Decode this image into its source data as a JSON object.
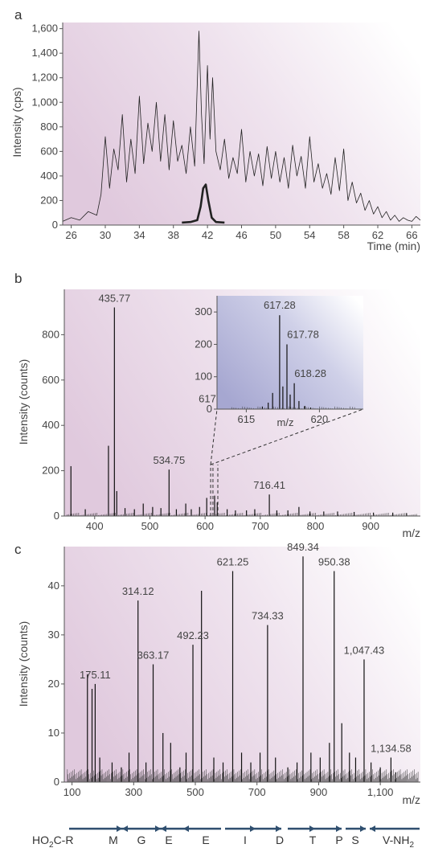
{
  "chart_data": [
    {
      "panel": "a",
      "type": "line",
      "xlabel": "Time (min)",
      "ylabel": "Intensity (cps)",
      "xlim": [
        25,
        67
      ],
      "ylim": [
        0,
        1650
      ],
      "x_ticks": [
        "26",
        "30",
        "34",
        "38",
        "42",
        "46",
        "50",
        "54",
        "58",
        "62",
        "66"
      ],
      "y_ticks": [
        "0",
        "200",
        "400",
        "600",
        "800",
        "1,000",
        "1,200",
        "1,400",
        "1,600"
      ],
      "series": [
        {
          "style": "thin",
          "x": [
            25,
            26,
            27,
            28,
            29,
            29.5,
            30,
            30.5,
            31,
            31.5,
            32,
            32.5,
            33,
            33.5,
            34,
            34.5,
            35,
            35.5,
            36,
            36.5,
            37,
            37.5,
            38,
            38.5,
            39,
            39.5,
            40,
            40.5,
            41,
            41.3,
            41.6,
            42,
            42.3,
            42.6,
            43,
            43.5,
            44,
            44.5,
            45,
            45.5,
            46,
            46.5,
            47,
            47.5,
            48,
            48.5,
            49,
            49.5,
            50,
            50.5,
            51,
            51.5,
            52,
            52.5,
            53,
            53.5,
            54,
            54.5,
            55,
            55.5,
            56,
            56.5,
            57,
            57.5,
            58,
            58.5,
            59,
            59.5,
            60,
            60.5,
            61,
            61.5,
            62,
            62.5,
            63,
            63.5,
            64,
            64.5,
            65,
            65.5,
            66,
            66.5,
            67
          ],
          "y": [
            30,
            60,
            40,
            110,
            80,
            250,
            720,
            300,
            620,
            450,
            900,
            350,
            700,
            420,
            1050,
            500,
            830,
            600,
            1000,
            520,
            900,
            450,
            850,
            520,
            650,
            420,
            800,
            480,
            1580,
            900,
            500,
            1300,
            700,
            1200,
            600,
            450,
            700,
            380,
            550,
            420,
            780,
            350,
            600,
            400,
            580,
            320,
            640,
            380,
            600,
            350,
            550,
            300,
            650,
            400,
            560,
            300,
            720,
            350,
            500,
            300,
            420,
            250,
            550,
            280,
            620,
            200,
            350,
            180,
            260,
            120,
            200,
            90,
            150,
            60,
            110,
            40,
            80,
            30,
            60,
            40,
            30,
            70,
            40
          ]
        },
        {
          "style": "thick",
          "x": [
            39,
            40,
            40.8,
            41.2,
            41.5,
            41.8,
            42.1,
            42.5,
            43,
            44
          ],
          "y": [
            20,
            25,
            40,
            150,
            300,
            330,
            200,
            60,
            25,
            20
          ]
        }
      ]
    },
    {
      "panel": "b",
      "type": "bar",
      "xlabel": "m/z",
      "ylabel": "Intensity (counts)",
      "xlim": [
        345,
        990
      ],
      "ylim": [
        0,
        1000
      ],
      "x_ticks": [
        "400",
        "500",
        "600",
        "700",
        "800",
        "900"
      ],
      "y_ticks": [
        "0",
        "200",
        "400",
        "600",
        "800"
      ],
      "peaks": {
        "x": [
          357,
          383,
          425,
          435.77,
          440,
          455,
          472,
          488,
          505,
          520,
          534.75,
          548,
          565,
          575,
          590,
          603,
          617.28,
          622,
          640,
          655,
          675,
          690,
          716.41,
          730,
          750,
          770,
          790,
          815,
          840,
          870,
          905,
          940,
          965
        ],
        "y": [
          220,
          30,
          310,
          920,
          110,
          35,
          30,
          55,
          40,
          35,
          205,
          30,
          55,
          30,
          40,
          80,
          90,
          60,
          30,
          25,
          25,
          30,
          95,
          25,
          25,
          40,
          20,
          20,
          20,
          18,
          15,
          15,
          12
        ]
      },
      "labels": [
        {
          "x": 435.77,
          "text": "435.77"
        },
        {
          "x": 534.75,
          "text": "534.75"
        },
        {
          "x": 617.28,
          "text": "617.28"
        },
        {
          "x": 716.41,
          "text": "716.41"
        }
      ],
      "inset": {
        "xlabel": "m/z",
        "xlim": [
          613,
          623
        ],
        "ylim": [
          0,
          350
        ],
        "x_ticks": [
          "615",
          "620"
        ],
        "y_ticks": [
          "0",
          "100",
          "200",
          "300"
        ],
        "peaks": {
          "x": [
            616.1,
            616.5,
            616.8,
            617.28,
            617.5,
            617.78,
            618.0,
            618.28,
            618.6,
            619.0,
            619.4
          ],
          "y": [
            8,
            20,
            50,
            290,
            70,
            200,
            45,
            80,
            25,
            10,
            5
          ]
        },
        "labels": [
          {
            "x": 617.28,
            "text": "617.28"
          },
          {
            "x": 617.78,
            "text": "617.78"
          },
          {
            "x": 618.28,
            "text": "618.28"
          }
        ]
      }
    },
    {
      "panel": "c",
      "type": "bar",
      "xlabel": "m/z",
      "ylabel": "Intensity (counts)",
      "xlim": [
        75,
        1230
      ],
      "ylim": [
        0,
        48
      ],
      "x_ticks": [
        "100",
        "300",
        "500",
        "700",
        "900",
        "1,100"
      ],
      "y_ticks": [
        "0",
        "10",
        "20",
        "30",
        "40"
      ],
      "peaks": {
        "x": [
          150,
          165,
          175.11,
          190,
          230,
          260,
          285,
          314.12,
          340,
          363.17,
          395,
          420,
          450,
          470,
          492.23,
          520,
          560,
          590,
          621.25,
          650,
          680,
          710,
          734.33,
          760,
          800,
          830,
          849.34,
          875,
          905,
          935,
          950.38,
          975,
          1000,
          1020,
          1047.43,
          1070,
          1100,
          1134.58,
          1150
        ],
        "y": [
          22,
          19,
          20,
          5,
          4,
          3,
          6,
          37,
          4,
          24,
          10,
          8,
          3,
          6,
          28,
          39,
          5,
          4,
          43,
          6,
          4,
          6,
          32,
          5,
          3,
          4,
          46,
          6,
          5,
          8,
          43,
          12,
          6,
          5,
          25,
          4,
          3,
          5,
          2
        ]
      },
      "labels": [
        {
          "x": 175.11,
          "text": "175.11"
        },
        {
          "x": 314.12,
          "text": "314.12"
        },
        {
          "x": 363.17,
          "text": "363.17"
        },
        {
          "x": 492.23,
          "text": "492.23"
        },
        {
          "x": 621.25,
          "text": "621.25"
        },
        {
          "x": 734.33,
          "text": "734.33"
        },
        {
          "x": 849.34,
          "text": "849.34"
        },
        {
          "x": 950.38,
          "text": "950.38"
        },
        {
          "x": 1047.43,
          "text": "1,047.43"
        },
        {
          "x": 1134.58,
          "text": "1,134.58"
        }
      ]
    }
  ],
  "panel_labels": [
    "a",
    "b",
    "c"
  ],
  "sequence": {
    "left": "HO",
    "left_sub": "2",
    "left_rest": "C-R",
    "residues": [
      "M",
      "G",
      "E",
      "E",
      "I",
      "D",
      "T",
      "P",
      "S"
    ],
    "right": "V-NH",
    "right_sub": "2"
  },
  "colors": {
    "gradient_pink": "#e3cfe0",
    "gradient_blue": "#a9a9d2",
    "trace": "#222222"
  }
}
